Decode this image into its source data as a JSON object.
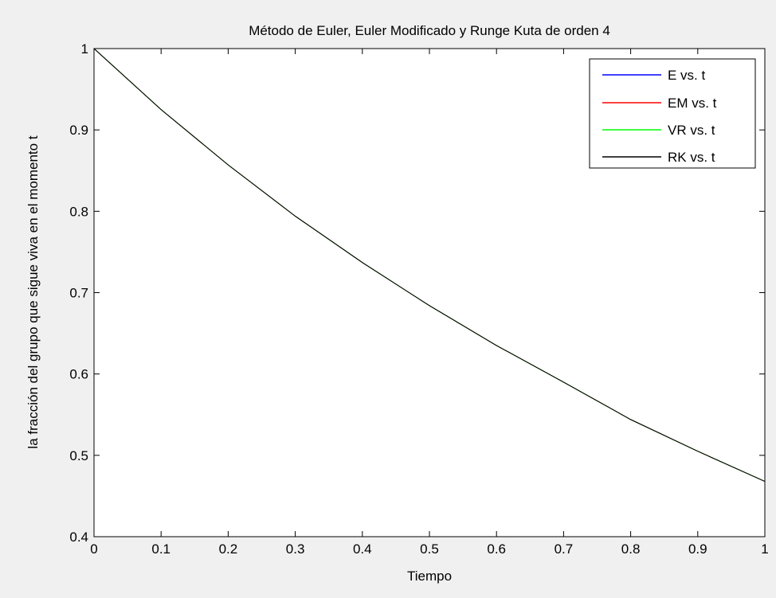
{
  "chart_data": {
    "type": "line",
    "title": "Método de Euler, Euler Modificado y Runge Kuta de orden 4",
    "xlabel": "Tiempo",
    "ylabel": "la fracción del grupo que sigue viva en el momento t",
    "xlim": [
      0,
      1
    ],
    "ylim": [
      0.4,
      1
    ],
    "xticks": [
      0,
      0.1,
      0.2,
      0.3,
      0.4,
      0.5,
      0.6,
      0.7,
      0.8,
      0.9,
      1
    ],
    "xtick_labels": [
      "0",
      "0.1",
      "0.2",
      "0.3",
      "0.4",
      "0.5",
      "0.6",
      "0.7",
      "0.8",
      "0.9",
      "1"
    ],
    "yticks": [
      0.4,
      0.5,
      0.6,
      0.7,
      0.8,
      0.9,
      1
    ],
    "ytick_labels": [
      "0.4",
      "0.5",
      "0.6",
      "0.7",
      "0.8",
      "0.9",
      "1"
    ],
    "grid": false,
    "legend_position": "top-right",
    "x": [
      0,
      0.1,
      0.2,
      0.3,
      0.4,
      0.5,
      0.6,
      0.7,
      0.8,
      0.9,
      1.0
    ],
    "series": [
      {
        "name": "E vs. t",
        "color": "#0000ff",
        "values": [
          1.0,
          0.925,
          0.857,
          0.794,
          0.737,
          0.684,
          0.635,
          0.59,
          0.544,
          0.505,
          0.468
        ]
      },
      {
        "name": "EM vs. t",
        "color": "#ff0000",
        "values": [
          1.0,
          0.925,
          0.857,
          0.794,
          0.737,
          0.684,
          0.635,
          0.59,
          0.544,
          0.505,
          0.468
        ]
      },
      {
        "name": "VR vs. t",
        "color": "#00ff00",
        "values": [
          1.0,
          0.925,
          0.857,
          0.794,
          0.737,
          0.684,
          0.635,
          0.59,
          0.544,
          0.505,
          0.468
        ]
      },
      {
        "name": "RK vs. t",
        "color": "#000000",
        "values": [
          1.0,
          0.925,
          0.857,
          0.794,
          0.737,
          0.684,
          0.635,
          0.59,
          0.544,
          0.505,
          0.468
        ]
      }
    ]
  }
}
